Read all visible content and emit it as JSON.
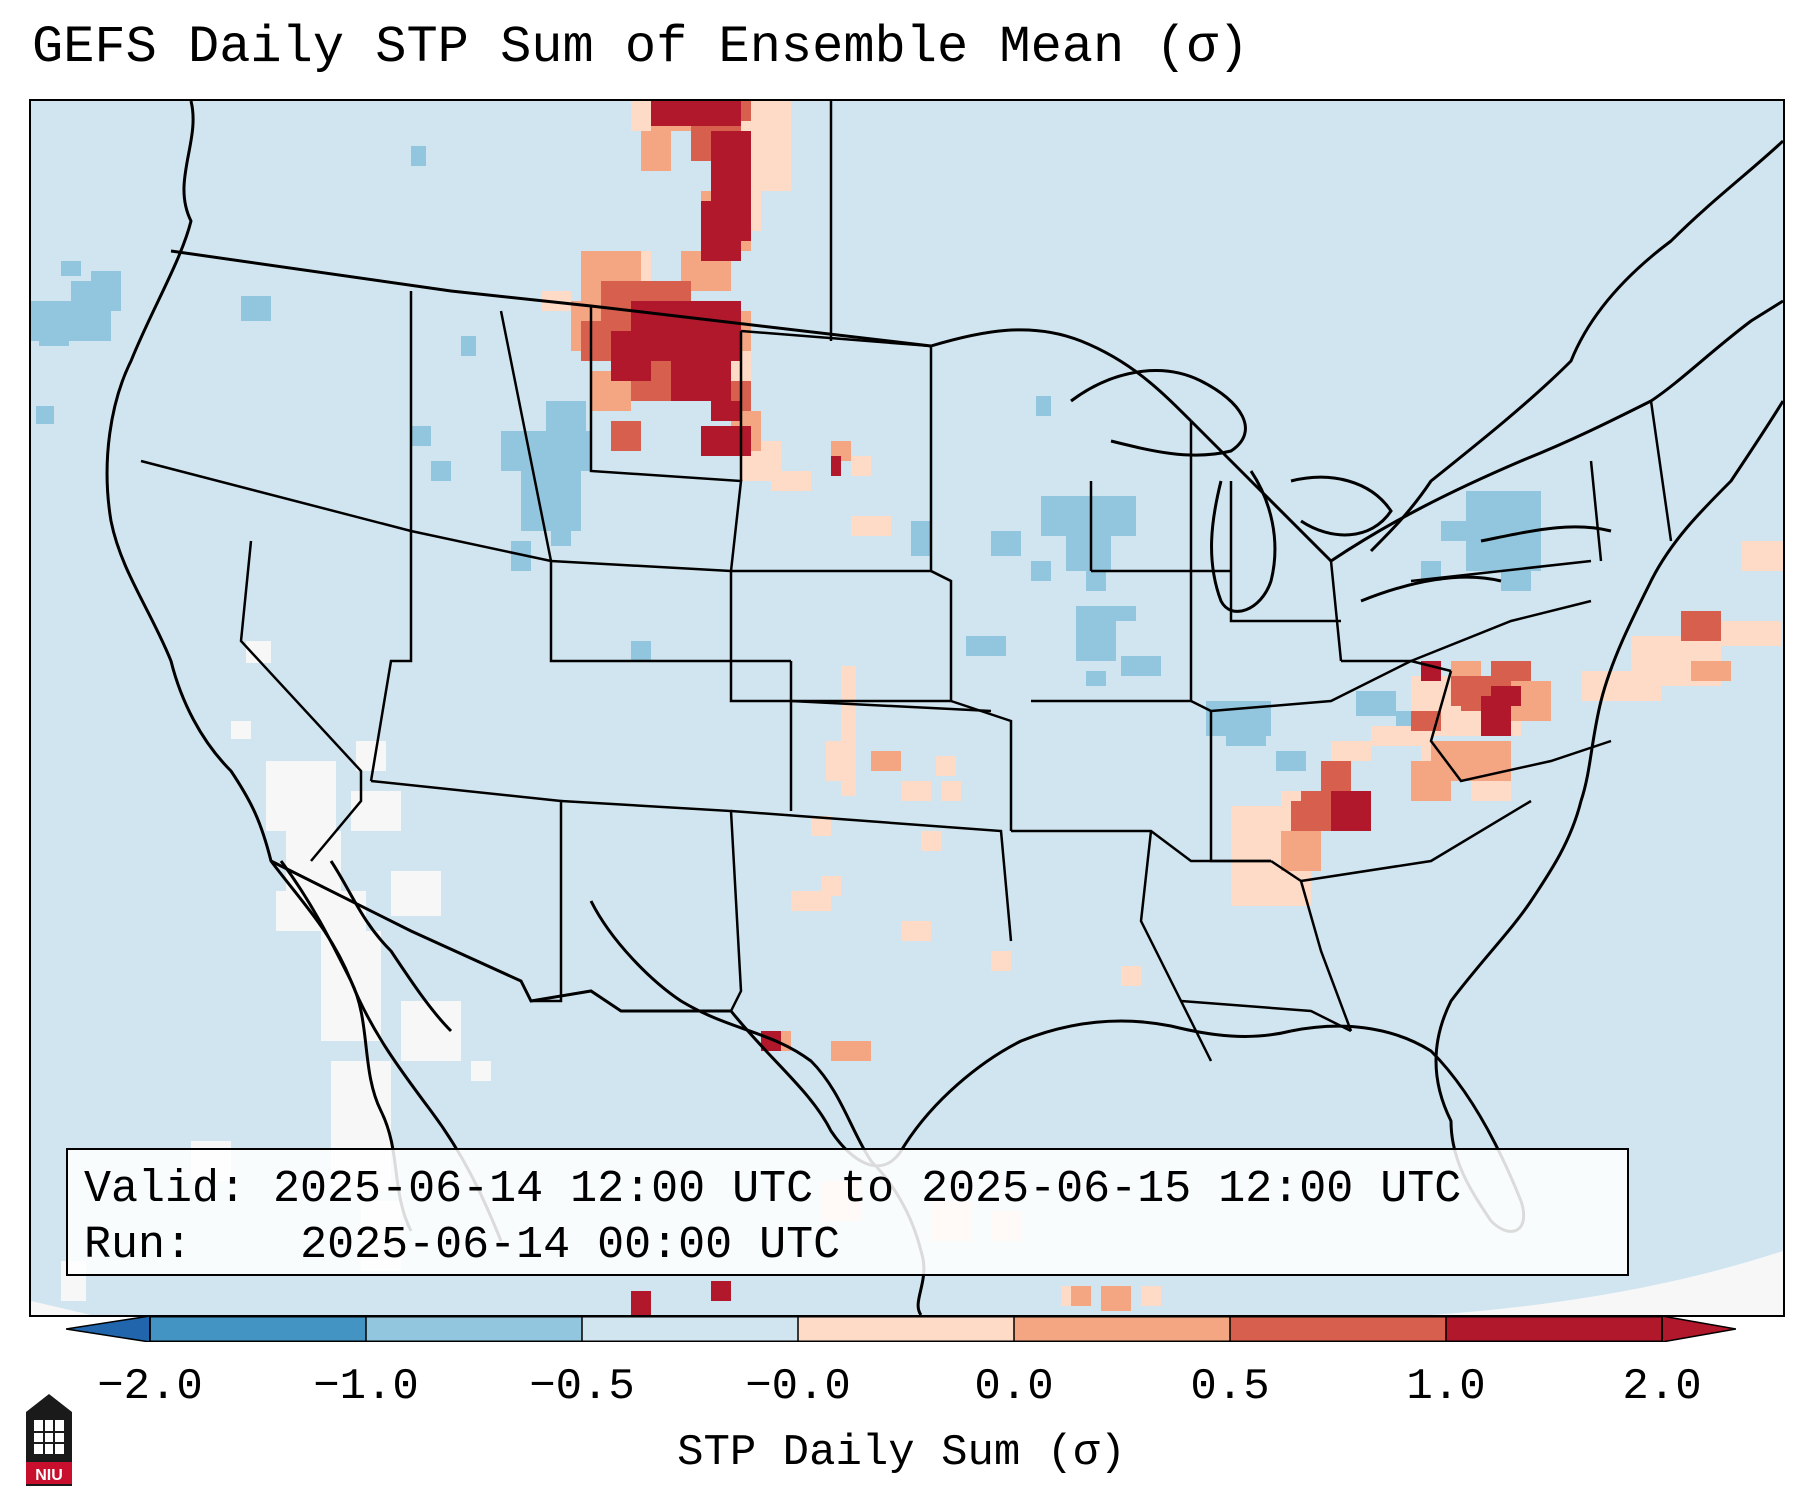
{
  "title": "GEFS Daily STP Sum of Ensemble Mean (σ)",
  "info": {
    "valid_label": "Valid:",
    "valid_value": "2025-06-14 12:00 UTC to 2025-06-15 12:00 UTC",
    "run_label": "Run:",
    "run_value": "2025-06-14 00:00 UTC"
  },
  "colorbar": {
    "label": "STP Daily Sum (σ)",
    "ticks": [
      "−2.0",
      "−1.0",
      "−0.5",
      "−0.0",
      "0.0",
      "0.5",
      "1.0",
      "2.0"
    ],
    "colors": [
      "#4393c3",
      "#92c5de",
      "#d1e5f0",
      "#f7f7f7",
      "#fddbc7",
      "#f4a582",
      "#d6604d",
      "#b2182b"
    ],
    "extend_low_color": "#2166ac",
    "extend_high_color": "#b2182b"
  },
  "logo": {
    "text": "NIU",
    "color": "#c8102e"
  },
  "map": {
    "background": "#d1e5f0",
    "features": [
      "Northern High Plains (Montana / Dakotas) high STP",
      "Virginia / Maryland elevated STP",
      "Georgia / South Carolina elevated STP",
      "Pennsylvania / Iowa low STP"
    ]
  }
}
